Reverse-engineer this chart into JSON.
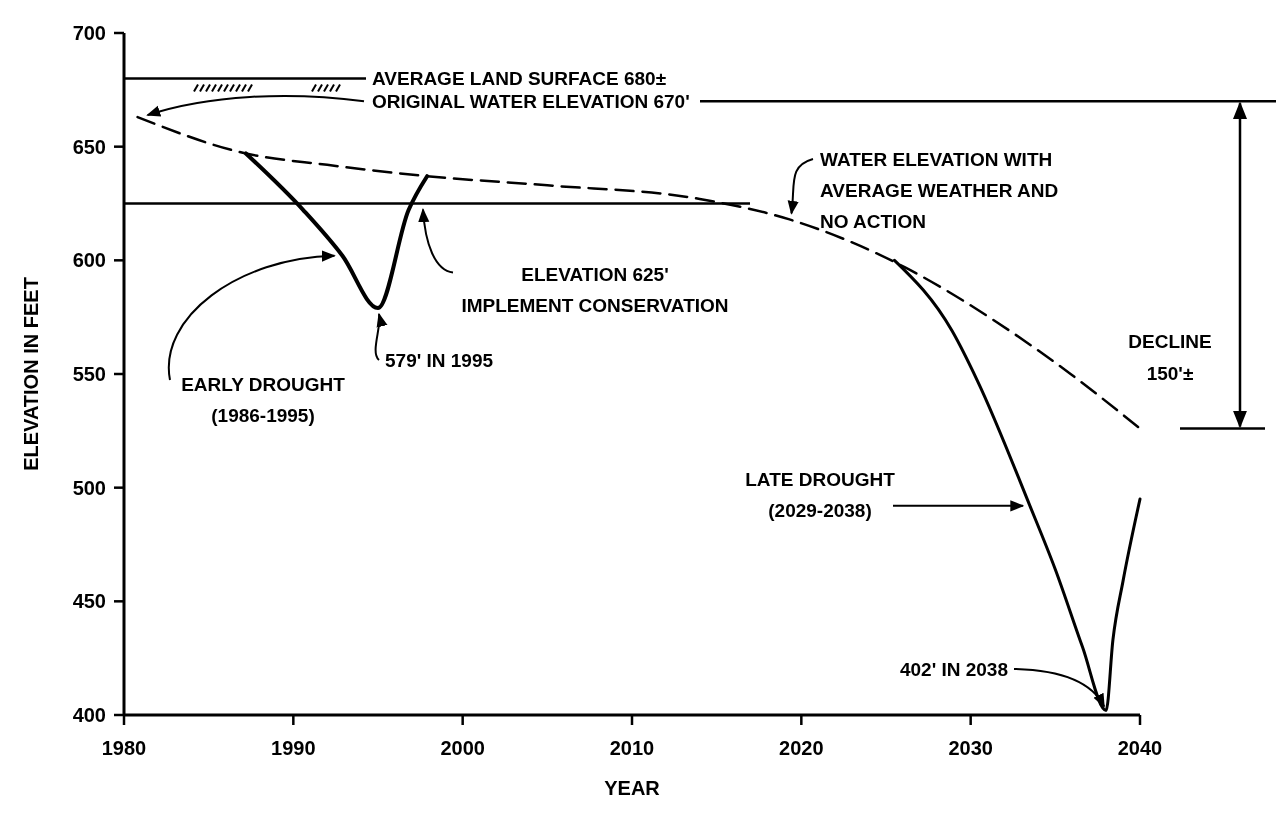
{
  "chart_data": {
    "type": "line",
    "xlabel": "YEAR",
    "ylabel": "ELEVATION IN FEET",
    "xlim": [
      1980,
      2040
    ],
    "xticks": [
      1980,
      1990,
      2000,
      2010,
      2020,
      2030,
      2040
    ],
    "ylim": [
      400,
      700
    ],
    "yticks": [
      400,
      450,
      500,
      550,
      600,
      650,
      700
    ],
    "grid": false,
    "marker": "none",
    "series": [
      {
        "color": "#000000",
        "line_style": "dashed",
        "x": [
          1980.8,
          1987.2,
          1992,
          1997.9,
          2005,
          2014,
          2019.3,
          2026.1,
          2031.5,
          2035.9,
          2040
        ],
        "values": [
          663,
          647,
          642,
          637,
          633,
          627,
          618,
          597,
          573,
          550,
          526
        ]
      },
      {
        "color": "#000000",
        "line_style": "solid",
        "x": [
          1987.2,
          1990.6,
          1992.9,
          1995,
          1996.8,
          1997.9
        ],
        "values": [
          647,
          622,
          602,
          579,
          622,
          637
        ]
      },
      {
        "color": "#000000",
        "line_style": "solid",
        "x": [
          2025.5,
          2028.9,
          2030.4,
          2033.5,
          2035,
          2036.6,
          2038,
          2038.4,
          2039,
          2040
        ],
        "values": [
          600,
          569,
          547,
          492,
          464,
          430,
          402,
          433,
          459,
          495
        ]
      }
    ],
    "ref_lines": [
      {
        "axis": "y",
        "value": 680,
        "label": "AVERAGE LAND SURFACE 680±",
        "color": "#000000",
        "line_style": "solid"
      },
      {
        "axis": "y",
        "value": 670,
        "label": "ORIGINAL WATER ELEVATION 670'",
        "color": "#000000",
        "line_style": "solid"
      },
      {
        "axis": "y",
        "value": 625,
        "label": "ELEVATION 625'\nIMPLEMENT CONSERVATION",
        "color": "#000000",
        "line_style": "solid"
      }
    ],
    "annotations": [
      {
        "text": "WATER ELEVATION WITH\nAVERAGE WEATHER AND\nNO ACTION",
        "x": 2019.3,
        "y": 618
      },
      {
        "text": "EARLY DROUGHT\n(1986-1995)",
        "x": 1992.9,
        "y": 602
      },
      {
        "text": "579' IN 1995",
        "x": 1995,
        "y": 579
      },
      {
        "text": "LATE DROUGHT\n(2029-2038)",
        "x": 2033.5,
        "y": 492
      },
      {
        "text": "402' IN 2038",
        "x": 2038,
        "y": 402
      },
      "DECLINE\n150'±"
    ]
  }
}
